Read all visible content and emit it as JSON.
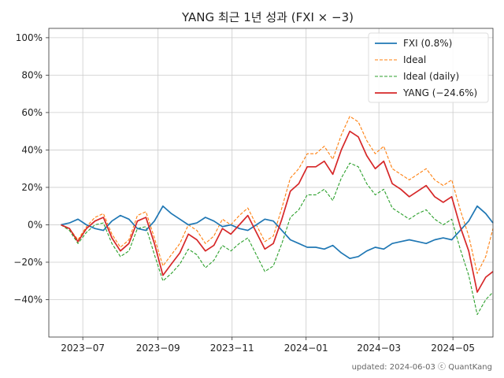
{
  "chart_data": {
    "type": "line",
    "title": "YANG 최근 1년 성과 (FXI × −3)",
    "footer": "updated: 2024-06-03 ⓒ QuantKang",
    "x_range": [
      "2023-06-03",
      "2024-06-03"
    ],
    "ylim": [
      -60,
      105
    ],
    "y_ticks": [
      -40,
      -20,
      0,
      20,
      40,
      60,
      80,
      100
    ],
    "y_tick_labels": [
      "−40%",
      "−20%",
      "0%",
      "20%",
      "40%",
      "60%",
      "80%",
      "100%"
    ],
    "x_ticks": [
      "2023-07-01",
      "2023-09-01",
      "2023-11-01",
      "2024-01-01",
      "2024-03-01",
      "2024-05-01"
    ],
    "x_tick_labels": [
      "2023−07",
      "2023−09",
      "2023−11",
      "2024−01",
      "2024−03",
      "2024−05"
    ],
    "grid": true,
    "legend_position": "top-right",
    "series": [
      {
        "name": "FXI (0.8%)",
        "color": "#1f77b4",
        "style": "solid",
        "points": [
          [
            "2023-06-13",
            0
          ],
          [
            "2023-06-20",
            1
          ],
          [
            "2023-06-27",
            3
          ],
          [
            "2023-07-04",
            0
          ],
          [
            "2023-07-11",
            -2
          ],
          [
            "2023-07-18",
            -3
          ],
          [
            "2023-07-25",
            2
          ],
          [
            "2023-08-01",
            5
          ],
          [
            "2023-08-08",
            3
          ],
          [
            "2023-08-15",
            -2
          ],
          [
            "2023-08-22",
            -3
          ],
          [
            "2023-08-29",
            2
          ],
          [
            "2023-09-05",
            10
          ],
          [
            "2023-09-12",
            6
          ],
          [
            "2023-09-19",
            3
          ],
          [
            "2023-09-26",
            0
          ],
          [
            "2023-10-03",
            1
          ],
          [
            "2023-10-10",
            4
          ],
          [
            "2023-10-17",
            2
          ],
          [
            "2023-10-24",
            -1
          ],
          [
            "2023-10-31",
            0
          ],
          [
            "2023-11-07",
            -2
          ],
          [
            "2023-11-14",
            -3
          ],
          [
            "2023-11-21",
            0
          ],
          [
            "2023-11-28",
            3
          ],
          [
            "2023-12-05",
            2
          ],
          [
            "2023-12-12",
            -3
          ],
          [
            "2023-12-19",
            -8
          ],
          [
            "2023-12-26",
            -10
          ],
          [
            "2024-01-02",
            -12
          ],
          [
            "2024-01-09",
            -12
          ],
          [
            "2024-01-16",
            -13
          ],
          [
            "2024-01-23",
            -11
          ],
          [
            "2024-01-30",
            -15
          ],
          [
            "2024-02-06",
            -18
          ],
          [
            "2024-02-13",
            -17
          ],
          [
            "2024-02-20",
            -14
          ],
          [
            "2024-02-27",
            -12
          ],
          [
            "2024-03-05",
            -13
          ],
          [
            "2024-03-12",
            -10
          ],
          [
            "2024-03-19",
            -9
          ],
          [
            "2024-03-26",
            -8
          ],
          [
            "2024-04-02",
            -9
          ],
          [
            "2024-04-09",
            -10
          ],
          [
            "2024-04-16",
            -8
          ],
          [
            "2024-04-23",
            -7
          ],
          [
            "2024-04-30",
            -8
          ],
          [
            "2024-05-07",
            -3
          ],
          [
            "2024-05-14",
            2
          ],
          [
            "2024-05-21",
            10
          ],
          [
            "2024-05-28",
            6
          ],
          [
            "2024-06-03",
            1
          ]
        ]
      },
      {
        "name": "Ideal",
        "color": "#ff7f0e",
        "style": "dashed",
        "points": [
          [
            "2023-06-13",
            0
          ],
          [
            "2023-06-20",
            -2
          ],
          [
            "2023-06-27",
            -8
          ],
          [
            "2023-07-04",
            -1
          ],
          [
            "2023-07-11",
            4
          ],
          [
            "2023-07-18",
            6
          ],
          [
            "2023-07-25",
            -5
          ],
          [
            "2023-08-01",
            -12
          ],
          [
            "2023-08-08",
            -8
          ],
          [
            "2023-08-15",
            5
          ],
          [
            "2023-08-22",
            7
          ],
          [
            "2023-08-29",
            -7
          ],
          [
            "2023-09-05",
            -22
          ],
          [
            "2023-09-12",
            -16
          ],
          [
            "2023-09-19",
            -10
          ],
          [
            "2023-09-26",
            0
          ],
          [
            "2023-10-03",
            -3
          ],
          [
            "2023-10-10",
            -10
          ],
          [
            "2023-10-17",
            -6
          ],
          [
            "2023-10-24",
            3
          ],
          [
            "2023-10-31",
            0
          ],
          [
            "2023-11-07",
            5
          ],
          [
            "2023-11-14",
            9
          ],
          [
            "2023-11-21",
            0
          ],
          [
            "2023-11-28",
            -9
          ],
          [
            "2023-12-05",
            -6
          ],
          [
            "2023-12-12",
            9
          ],
          [
            "2023-12-19",
            25
          ],
          [
            "2023-12-26",
            30
          ],
          [
            "2024-01-02",
            38
          ],
          [
            "2024-01-09",
            38
          ],
          [
            "2024-01-16",
            42
          ],
          [
            "2024-01-23",
            35
          ],
          [
            "2024-01-30",
            48
          ],
          [
            "2024-02-06",
            58
          ],
          [
            "2024-02-13",
            55
          ],
          [
            "2024-02-20",
            45
          ],
          [
            "2024-02-27",
            38
          ],
          [
            "2024-03-05",
            42
          ],
          [
            "2024-03-12",
            30
          ],
          [
            "2024-03-19",
            27
          ],
          [
            "2024-03-26",
            24
          ],
          [
            "2024-04-02",
            27
          ],
          [
            "2024-04-09",
            30
          ],
          [
            "2024-04-16",
            24
          ],
          [
            "2024-04-23",
            21
          ],
          [
            "2024-04-30",
            24
          ],
          [
            "2024-05-07",
            8
          ],
          [
            "2024-05-14",
            -6
          ],
          [
            "2024-05-21",
            -26
          ],
          [
            "2024-05-28",
            -17
          ],
          [
            "2024-06-03",
            -2
          ]
        ]
      },
      {
        "name": "Ideal (daily)",
        "color": "#2ca02c",
        "style": "dashed",
        "points": [
          [
            "2023-06-13",
            0
          ],
          [
            "2023-06-20",
            -3
          ],
          [
            "2023-06-27",
            -10
          ],
          [
            "2023-07-04",
            -4
          ],
          [
            "2023-07-11",
            0
          ],
          [
            "2023-07-18",
            1
          ],
          [
            "2023-07-25",
            -10
          ],
          [
            "2023-08-01",
            -17
          ],
          [
            "2023-08-08",
            -14
          ],
          [
            "2023-08-15",
            -2
          ],
          [
            "2023-08-22",
            -1
          ],
          [
            "2023-08-29",
            -16
          ],
          [
            "2023-09-05",
            -30
          ],
          [
            "2023-09-12",
            -26
          ],
          [
            "2023-09-19",
            -21
          ],
          [
            "2023-09-26",
            -13
          ],
          [
            "2023-10-03",
            -16
          ],
          [
            "2023-10-10",
            -23
          ],
          [
            "2023-10-17",
            -19
          ],
          [
            "2023-10-24",
            -11
          ],
          [
            "2023-10-31",
            -14
          ],
          [
            "2023-11-07",
            -10
          ],
          [
            "2023-11-14",
            -7
          ],
          [
            "2023-11-21",
            -16
          ],
          [
            "2023-11-28",
            -25
          ],
          [
            "2023-12-05",
            -22
          ],
          [
            "2023-12-12",
            -10
          ],
          [
            "2023-12-19",
            4
          ],
          [
            "2023-12-26",
            8
          ],
          [
            "2024-01-02",
            16
          ],
          [
            "2024-01-09",
            16
          ],
          [
            "2024-01-16",
            19
          ],
          [
            "2024-01-23",
            13
          ],
          [
            "2024-01-30",
            25
          ],
          [
            "2024-02-06",
            33
          ],
          [
            "2024-02-13",
            31
          ],
          [
            "2024-02-20",
            22
          ],
          [
            "2024-02-27",
            16
          ],
          [
            "2024-03-05",
            19
          ],
          [
            "2024-03-12",
            9
          ],
          [
            "2024-03-19",
            6
          ],
          [
            "2024-03-26",
            3
          ],
          [
            "2024-04-02",
            6
          ],
          [
            "2024-04-09",
            8
          ],
          [
            "2024-04-16",
            3
          ],
          [
            "2024-04-23",
            0
          ],
          [
            "2024-04-30",
            3
          ],
          [
            "2024-05-07",
            -13
          ],
          [
            "2024-05-14",
            -27
          ],
          [
            "2024-05-21",
            -48
          ],
          [
            "2024-05-28",
            -40
          ],
          [
            "2024-06-03",
            -36
          ]
        ]
      },
      {
        "name": "YANG (−24.6%)",
        "color": "#d62728",
        "style": "solid",
        "points": [
          [
            "2023-06-13",
            0
          ],
          [
            "2023-06-20",
            -2
          ],
          [
            "2023-06-27",
            -9
          ],
          [
            "2023-07-04",
            -2
          ],
          [
            "2023-07-11",
            2
          ],
          [
            "2023-07-18",
            4
          ],
          [
            "2023-07-25",
            -7
          ],
          [
            "2023-08-01",
            -14
          ],
          [
            "2023-08-08",
            -10
          ],
          [
            "2023-08-15",
            2
          ],
          [
            "2023-08-22",
            4
          ],
          [
            "2023-08-29",
            -10
          ],
          [
            "2023-09-05",
            -27
          ],
          [
            "2023-09-12",
            -21
          ],
          [
            "2023-09-19",
            -15
          ],
          [
            "2023-09-26",
            -5
          ],
          [
            "2023-10-03",
            -8
          ],
          [
            "2023-10-10",
            -14
          ],
          [
            "2023-10-17",
            -11
          ],
          [
            "2023-10-24",
            -2
          ],
          [
            "2023-10-31",
            -5
          ],
          [
            "2023-11-07",
            0
          ],
          [
            "2023-11-14",
            5
          ],
          [
            "2023-11-21",
            -4
          ],
          [
            "2023-11-28",
            -13
          ],
          [
            "2023-12-05",
            -10
          ],
          [
            "2023-12-12",
            3
          ],
          [
            "2023-12-19",
            18
          ],
          [
            "2023-12-26",
            22
          ],
          [
            "2024-01-02",
            31
          ],
          [
            "2024-01-09",
            31
          ],
          [
            "2024-01-16",
            34
          ],
          [
            "2024-01-23",
            27
          ],
          [
            "2024-01-30",
            40
          ],
          [
            "2024-02-06",
            50
          ],
          [
            "2024-02-13",
            47
          ],
          [
            "2024-02-20",
            37
          ],
          [
            "2024-02-27",
            30
          ],
          [
            "2024-03-05",
            34
          ],
          [
            "2024-03-12",
            22
          ],
          [
            "2024-03-19",
            19
          ],
          [
            "2024-03-26",
            15
          ],
          [
            "2024-04-02",
            18
          ],
          [
            "2024-04-09",
            21
          ],
          [
            "2024-04-16",
            15
          ],
          [
            "2024-04-23",
            12
          ],
          [
            "2024-04-30",
            15
          ],
          [
            "2024-05-07",
            -1
          ],
          [
            "2024-05-14",
            -14
          ],
          [
            "2024-05-21",
            -36
          ],
          [
            "2024-05-28",
            -28
          ],
          [
            "2024-06-03",
            -25
          ]
        ]
      }
    ]
  }
}
